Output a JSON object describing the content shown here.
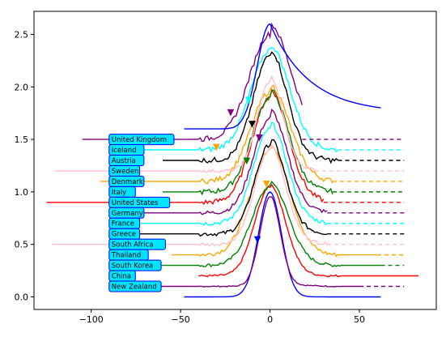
{
  "chart_data": {
    "type": "line",
    "title": "",
    "xlabel": "",
    "ylabel": "",
    "xlim": [
      -132,
      93
    ],
    "ylim": [
      -0.12,
      2.72
    ],
    "xticks": [
      -100,
      -50,
      0,
      50
    ],
    "yticks": [
      0.0,
      0.5,
      1.0,
      1.5,
      2.0,
      2.5
    ],
    "xtick_labels": [
      "−100",
      "−50",
      "0",
      "50"
    ],
    "ytick_labels": [
      "0.0",
      "0.5",
      "1.0",
      "1.5",
      "2.0",
      "2.5"
    ],
    "label_box_color": "#00e5ff",
    "label_border_color": "#0000ff",
    "label_x": -90,
    "series": [
      {
        "name": "New Zealand",
        "color": "#0000ff",
        "offset": 0.0,
        "amp": 1.0,
        "left": -48,
        "right": 62,
        "w": 9,
        "tail": 0.0,
        "noise": 0.0,
        "dashed_to": 0,
        "marker": {
          "x": -7,
          "y": 0.55,
          "color": "#0000ff"
        }
      },
      {
        "name": "China",
        "color": "#800080",
        "offset": 0.1,
        "amp": 0.85,
        "left": -88,
        "right": 50,
        "w": 8,
        "tail": 0.02,
        "noise": 0.01,
        "dashed_to": 75
      },
      {
        "name": "South Korea",
        "color": "#ff0000",
        "offset": 0.2,
        "amp": 0.85,
        "left": -40,
        "right": 83,
        "w": 12,
        "tail": 0.02,
        "noise": 0.02,
        "dashed_to": 0
      },
      {
        "name": "Thailand",
        "color": "#008000",
        "offset": 0.3,
        "amp": 0.75,
        "left": -85,
        "right": 62,
        "w": 14,
        "tail": 0.05,
        "noise": 0.03,
        "dashed_to": 75
      },
      {
        "name": "South Africa",
        "color": "#ffa500",
        "offset": 0.4,
        "amp": 1.0,
        "left": -55,
        "right": 60,
        "w": 15,
        "tail": 0.05,
        "noise": 0.04,
        "dashed_to": 75,
        "marker": {
          "x": -2,
          "y": 1.08,
          "color": "#ffa500"
        }
      },
      {
        "name": "Greece",
        "color": "#ffc0cb",
        "offset": 0.5,
        "amp": 0.9,
        "left": -122,
        "right": 32,
        "w": 12,
        "tail": 0.05,
        "noise": 0.03,
        "dashed_to": 75
      },
      {
        "name": "France",
        "color": "#000000",
        "offset": 0.6,
        "amp": 0.85,
        "left": -80,
        "right": 32,
        "w": 12,
        "tail": 0.06,
        "noise": 0.04,
        "dashed_to": 75
      },
      {
        "name": "Germany",
        "color": "#00ffff",
        "offset": 0.7,
        "amp": 0.9,
        "left": -80,
        "right": 32,
        "w": 13,
        "tail": 0.06,
        "noise": 0.04,
        "dashed_to": 75
      },
      {
        "name": "United States",
        "color": "#800080",
        "offset": 0.8,
        "amp": 0.9,
        "left": -85,
        "right": 32,
        "w": 13,
        "tail": 0.08,
        "noise": 0.04,
        "dashed_to": 75,
        "marker": {
          "x": -6,
          "y": 1.52,
          "color": "#800080"
        }
      },
      {
        "name": "Italy",
        "color": "#ff0000",
        "offset": 0.9,
        "amp": 1.0,
        "left": -125,
        "right": 30,
        "w": 14,
        "tail": 0.08,
        "noise": 0.05,
        "dashed_to": 75
      },
      {
        "name": "Denmark",
        "color": "#008000",
        "offset": 1.0,
        "amp": 0.9,
        "left": -60,
        "right": 35,
        "w": 14,
        "tail": 0.07,
        "noise": 0.05,
        "dashed_to": 75,
        "marker": {
          "x": -13,
          "y": 1.3,
          "color": "#008000"
        }
      },
      {
        "name": "Sweden",
        "color": "#ffa500",
        "offset": 1.1,
        "amp": 0.85,
        "left": -95,
        "right": 35,
        "w": 15,
        "tail": 0.07,
        "noise": 0.05,
        "dashed_to": 75,
        "marker": {
          "x": -30,
          "y": 1.43,
          "color": "#ffa500"
        }
      },
      {
        "name": "Iceland",
        "color": "#ffc0cb",
        "offset": 1.2,
        "amp": 0.85,
        "left": -120,
        "right": 25,
        "w": 10,
        "tail": 0.05,
        "noise": 0.03,
        "dashed_to": 75
      },
      {
        "name": "Austria",
        "color": "#000000",
        "offset": 1.3,
        "amp": 1.0,
        "left": -60,
        "right": 38,
        "w": 13,
        "tail": 0.06,
        "noise": 0.05,
        "dashed_to": 75,
        "marker": {
          "x": -10,
          "y": 1.65,
          "color": "#000000"
        }
      },
      {
        "name": "United Kingdom",
        "color": "#00ffff",
        "offset": 1.4,
        "amp": 0.95,
        "left": -80,
        "right": 38,
        "w": 15,
        "tail": 0.05,
        "noise": 0.05,
        "dashed_to": 75,
        "marker": {
          "x": -12,
          "y": 1.88,
          "color": "#00ffff"
        }
      },
      {
        "name": "",
        "color": "#800080",
        "offset": 1.5,
        "amp": 1.0,
        "left": -105,
        "right": 18,
        "w": 16,
        "tail": 0.1,
        "noise": 0.05,
        "dashed_to": 75,
        "marker": {
          "x": -22,
          "y": 1.76,
          "color": "#800080"
        }
      },
      {
        "name": "",
        "color": "#0000ff",
        "offset": 1.6,
        "amp": 1.0,
        "left": -48,
        "right": 62,
        "w": 10,
        "tail": 0.0,
        "noise": 0.0,
        "dashed_to": 0,
        "skew": true
      }
    ],
    "labels_order": [
      "United Kingdom",
      "Iceland",
      "Austria",
      "Sweden",
      "Denmark",
      "Italy",
      "United States",
      "Germany",
      "France",
      "Greece",
      "South Africa",
      "Thailand",
      "South Korea",
      "China",
      "New Zealand"
    ],
    "labels_y": [
      1.5,
      1.4,
      1.3,
      1.2,
      1.1,
      1.0,
      0.9,
      0.8,
      0.7,
      0.6,
      0.5,
      0.4,
      0.3,
      0.2,
      0.1
    ]
  }
}
